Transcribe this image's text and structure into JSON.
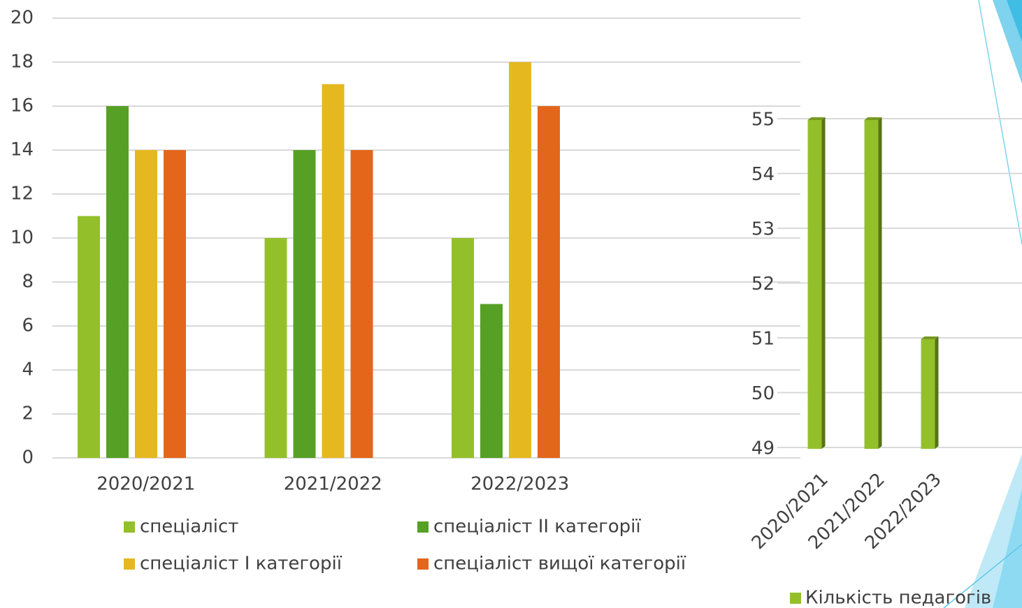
{
  "chart_data": [
    {
      "type": "bar",
      "categories": [
        "2020/2021",
        "2021/2022",
        "2022/2023",
        null
      ],
      "series": [
        {
          "name": "спеціаліст",
          "color": "#93c02a",
          "values": [
            11,
            10,
            10,
            null
          ]
        },
        {
          "name": "спеціаліст ІІ категорії",
          "color": "#56a026",
          "values": [
            16,
            14,
            7,
            null
          ]
        },
        {
          "name": "спеціаліст І категорії",
          "color": "#e6b820",
          "values": [
            14,
            17,
            18,
            null
          ]
        },
        {
          "name": "спеціаліст вищої категорії",
          "color": "#e4661b",
          "values": [
            14,
            14,
            16,
            null
          ]
        }
      ],
      "ylim": [
        0,
        20
      ],
      "yticks": [
        0,
        2,
        4,
        6,
        8,
        10,
        12,
        14,
        16,
        18,
        20
      ],
      "grid": true,
      "legend": "bottom"
    },
    {
      "type": "bar3d",
      "categories": [
        "2020/2021",
        "2021/2022",
        "2022/2023"
      ],
      "series": [
        {
          "name": "Кількість педагогів",
          "color": "#93c02a",
          "values": [
            55,
            55,
            51
          ]
        }
      ],
      "ylim": [
        49,
        55
      ],
      "yticks": [
        49,
        50,
        51,
        52,
        53,
        54,
        55
      ],
      "grid": true,
      "legend": "bottom"
    }
  ]
}
